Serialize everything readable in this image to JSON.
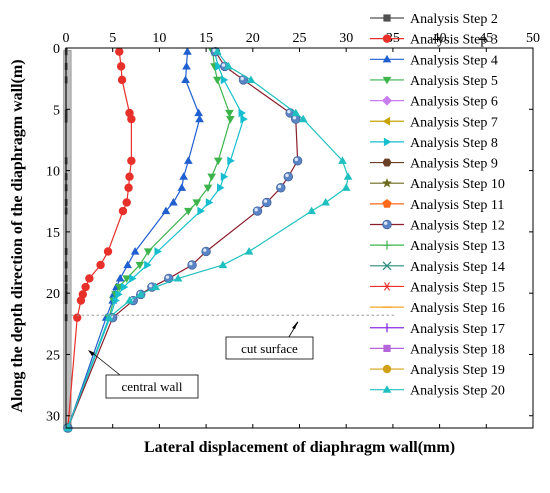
{
  "chart_data": {
    "type": "line",
    "xlabel": "Lateral displacement of diaphragm wall(mm)",
    "ylabel": "Along the depth direction of the diaphragm wall(m)",
    "xlim": [
      0,
      50
    ],
    "ylim": [
      0,
      31
    ],
    "y_inverted": true,
    "x_axis_position": "top",
    "x_ticks": [
      0,
      5,
      10,
      15,
      20,
      25,
      30,
      35,
      40,
      45,
      50
    ],
    "y_ticks": [
      0,
      5,
      10,
      15,
      20,
      25,
      30
    ],
    "grid": false,
    "legend_position": "right",
    "annotations": [
      {
        "text": "cut surface",
        "depth": 21.8
      },
      {
        "text": "central wall"
      }
    ],
    "series": [
      {
        "name": "Analysis Step 2",
        "color": "#505050",
        "marker": "square",
        "points": [
          [
            0,
            0.3
          ],
          [
            0,
            1.5
          ],
          [
            0,
            2.6
          ],
          [
            0,
            5.3
          ],
          [
            0,
            5.8
          ],
          [
            0,
            9.2
          ],
          [
            0,
            10.5
          ],
          [
            0,
            11.4
          ],
          [
            0,
            12.6
          ],
          [
            0,
            13.3
          ],
          [
            0,
            16.6
          ],
          [
            0,
            17.7
          ],
          [
            0,
            18.8
          ],
          [
            0,
            19.5
          ],
          [
            0,
            20.1
          ],
          [
            0,
            20.6
          ],
          [
            0,
            22.0
          ]
        ]
      },
      {
        "name": "Analysis Step 3",
        "color": "#e8302a",
        "marker": "circle",
        "points": [
          [
            5.7,
            0.3
          ],
          [
            5.9,
            1.5
          ],
          [
            6.0,
            2.6
          ],
          [
            6.8,
            5.3
          ],
          [
            7.0,
            5.8
          ],
          [
            7.0,
            9.2
          ],
          [
            6.8,
            10.5
          ],
          [
            6.7,
            11.4
          ],
          [
            6.5,
            12.6
          ],
          [
            6.1,
            13.3
          ],
          [
            4.5,
            16.6
          ],
          [
            3.7,
            17.7
          ],
          [
            2.5,
            18.8
          ],
          [
            2.1,
            19.5
          ],
          [
            1.8,
            20.1
          ],
          [
            1.6,
            20.6
          ],
          [
            1.2,
            22.0
          ],
          [
            0.2,
            31.0
          ]
        ]
      },
      {
        "name": "Analysis Step 4",
        "color": "#1f5fd0",
        "marker": "triangle-up",
        "points": [
          [
            13.0,
            0.3
          ],
          [
            12.9,
            1.5
          ],
          [
            12.8,
            2.6
          ],
          [
            14.2,
            5.3
          ],
          [
            14.3,
            5.8
          ],
          [
            13.1,
            9.2
          ],
          [
            12.6,
            10.5
          ],
          [
            12.4,
            11.4
          ],
          [
            11.5,
            12.6
          ],
          [
            10.7,
            13.3
          ],
          [
            7.4,
            16.6
          ],
          [
            6.6,
            17.7
          ],
          [
            5.8,
            18.8
          ],
          [
            5.4,
            19.5
          ],
          [
            5.1,
            20.1
          ],
          [
            5.0,
            20.6
          ],
          [
            4.3,
            22.0
          ],
          [
            0.2,
            31.0
          ]
        ]
      },
      {
        "name": "Analysis Step 5",
        "color": "#3cb44b",
        "marker": "triangle-down",
        "points": [
          [
            15.7,
            0.3
          ],
          [
            15.9,
            1.5
          ],
          [
            16.2,
            2.6
          ],
          [
            17.5,
            5.3
          ],
          [
            17.6,
            5.8
          ],
          [
            16.3,
            9.2
          ],
          [
            15.6,
            10.5
          ],
          [
            15.2,
            11.4
          ],
          [
            14.0,
            12.6
          ],
          [
            13.1,
            13.3
          ],
          [
            8.8,
            16.6
          ],
          [
            7.9,
            17.7
          ],
          [
            6.5,
            18.8
          ],
          [
            5.7,
            19.5
          ],
          [
            5.3,
            20.1
          ],
          [
            5.1,
            20.6
          ],
          [
            4.6,
            22.0
          ],
          [
            0.2,
            31.0
          ]
        ]
      },
      {
        "name": "Analysis Step 6",
        "color": "#c77cf0",
        "marker": "diamond",
        "points": []
      },
      {
        "name": "Analysis Step 7",
        "color": "#c8a200",
        "marker": "triangle-left",
        "points": []
      },
      {
        "name": "Analysis Step 8",
        "color": "#17becf",
        "marker": "triangle-right",
        "points": [
          [
            15.9,
            0.3
          ],
          [
            16.3,
            1.5
          ],
          [
            16.9,
            2.6
          ],
          [
            18.8,
            5.3
          ],
          [
            19.0,
            5.8
          ],
          [
            17.6,
            9.2
          ],
          [
            16.9,
            10.5
          ],
          [
            16.5,
            11.4
          ],
          [
            15.3,
            12.6
          ],
          [
            14.4,
            13.3
          ],
          [
            9.8,
            16.6
          ],
          [
            8.7,
            17.7
          ],
          [
            7.1,
            18.8
          ],
          [
            6.2,
            19.5
          ],
          [
            5.6,
            20.1
          ],
          [
            5.3,
            20.6
          ],
          [
            4.7,
            22.0
          ],
          [
            0.2,
            31.0
          ]
        ]
      },
      {
        "name": "Analysis Step 9",
        "color": "#6b3e26",
        "marker": "hexagon",
        "points": []
      },
      {
        "name": "Analysis Step 10",
        "color": "#6b6b1e",
        "marker": "star",
        "points": []
      },
      {
        "name": "Analysis Step 11",
        "color": "#ff6a1a",
        "marker": "pentagon",
        "points": []
      },
      {
        "name": "Analysis Step 12",
        "color": "#8b1e2d",
        "marker": "sphere",
        "points": [
          [
            16.0,
            0.3
          ],
          [
            17.0,
            1.5
          ],
          [
            19.0,
            2.6
          ],
          [
            24.0,
            5.3
          ],
          [
            24.6,
            5.8
          ],
          [
            24.8,
            9.2
          ],
          [
            23.8,
            10.5
          ],
          [
            23.0,
            11.4
          ],
          [
            21.5,
            12.6
          ],
          [
            20.5,
            13.3
          ],
          [
            15.0,
            16.6
          ],
          [
            13.5,
            17.7
          ],
          [
            11.0,
            18.8
          ],
          [
            9.2,
            19.5
          ],
          [
            8.0,
            20.1
          ],
          [
            7.2,
            20.6
          ],
          [
            5.0,
            22.0
          ],
          [
            0.2,
            31.0
          ]
        ]
      },
      {
        "name": "Analysis Step 13",
        "color": "#3cb44b",
        "marker": "plus",
        "points": []
      },
      {
        "name": "Analysis Step 14",
        "color": "#2e8b7a",
        "marker": "x",
        "points": []
      },
      {
        "name": "Analysis Step 15",
        "color": "#e8302a",
        "marker": "asterisk",
        "points": []
      },
      {
        "name": "Analysis Step 16",
        "color": "#f5a623",
        "marker": "dash",
        "points": []
      },
      {
        "name": "Analysis Step 17",
        "color": "#8a2be2",
        "marker": "vbar",
        "points": []
      },
      {
        "name": "Analysis Step 18",
        "color": "#b565d9",
        "marker": "square",
        "points": []
      },
      {
        "name": "Analysis Step 19",
        "color": "#d4a017",
        "marker": "circle",
        "points": []
      },
      {
        "name": "Analysis Step 20",
        "color": "#20c0c0",
        "marker": "triangle-up",
        "points": [
          [
            16.2,
            0.3
          ],
          [
            17.4,
            1.5
          ],
          [
            19.8,
            2.6
          ],
          [
            24.6,
            5.3
          ],
          [
            25.4,
            5.8
          ],
          [
            29.6,
            9.2
          ],
          [
            30.2,
            10.5
          ],
          [
            30.0,
            11.4
          ],
          [
            27.8,
            12.6
          ],
          [
            26.3,
            13.3
          ],
          [
            19.6,
            16.6
          ],
          [
            16.8,
            17.7
          ],
          [
            12.0,
            18.8
          ],
          [
            9.6,
            19.5
          ],
          [
            8.0,
            20.1
          ],
          [
            6.8,
            20.6
          ],
          [
            4.6,
            22.0
          ],
          [
            0.2,
            31.0
          ]
        ]
      }
    ]
  }
}
